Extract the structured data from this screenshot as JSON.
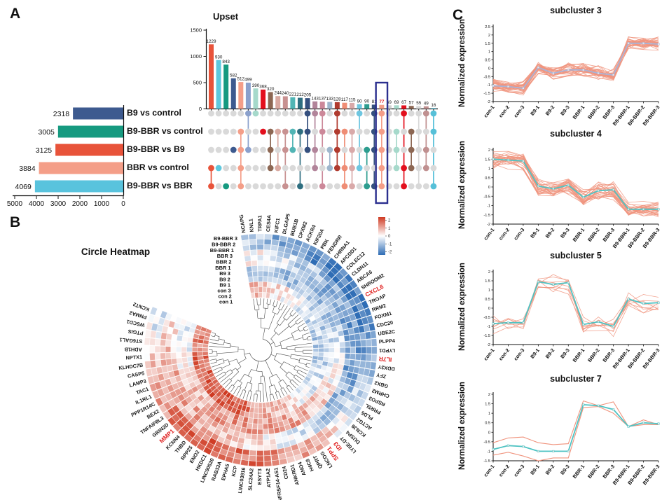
{
  "figure_labels": {
    "a": "A",
    "b": "B",
    "c": "C"
  },
  "chart_data": [
    {
      "type": "bar",
      "id": "upset",
      "title": "Upset",
      "yticks": [
        0,
        500,
        1000,
        1500
      ],
      "ylim": [
        0,
        1500
      ],
      "values": [
        1229,
        930,
        843,
        582,
        512,
        499,
        390,
        368,
        320,
        244,
        240,
        221,
        212,
        205,
        143,
        137,
        133,
        128,
        117,
        115,
        90,
        90,
        81,
        77,
        69,
        69,
        67,
        57,
        55,
        49,
        16
      ],
      "colors": [
        "#e8533a",
        "#5ec8dd",
        "#169a80",
        "#3d5a8f",
        "#f49e88",
        "#8aa0cc",
        "#a6d9cb",
        "#e30f1d",
        "#8d6753",
        "#d9a9a1",
        "#c89191",
        "#51b5b5",
        "#2e6e80",
        "#344f7e",
        "#b2849a",
        "#cc8899",
        "#9fb6cc",
        "#b03a2e",
        "#ef8d75",
        "#d9a9a9",
        "#6ec6e0",
        "#2d9d8f",
        "#35507f",
        "#f49e88",
        "#cfcfcf",
        "#a6d9cb",
        "#e30f1d",
        "#8d6753",
        "#d8d8d8",
        "#c09090",
        "#56c0d8"
      ],
      "matrix_rows": [
        [
          3,
          4
        ],
        [
          3
        ],
        [
          4
        ],
        [
          2
        ],
        [
          1,
          2,
          3,
          4
        ],
        [
          0,
          2
        ],
        [
          0
        ],
        [
          1
        ],
        [
          1,
          2,
          3
        ],
        [
          1,
          3
        ],
        [
          1,
          2,
          4
        ],
        [
          1,
          2
        ],
        [
          1,
          4
        ],
        [
          0,
          1,
          2
        ],
        [
          0,
          2,
          3
        ],
        [
          0,
          1,
          4
        ],
        [
          2,
          3
        ],
        [
          0,
          1,
          2,
          3
        ],
        [
          1,
          3,
          4
        ],
        [
          1,
          2,
          3,
          4
        ],
        [
          0,
          3
        ],
        [
          2,
          4
        ],
        [
          0,
          1,
          2,
          4
        ],
        [
          0,
          1,
          2,
          3,
          4
        ],
        [
          0,
          2
        ],
        [
          1,
          2,
          3
        ],
        [
          0,
          3,
          4
        ],
        [
          1,
          2,
          3
        ],
        [
          0,
          2,
          4
        ],
        [
          0,
          2,
          3
        ],
        [
          0,
          1,
          4
        ]
      ],
      "highlight": {
        "index": 23,
        "value": 77,
        "box_color": "#2b2f8f",
        "value_color": "#e0201f"
      },
      "inactive_dot": "#d9d9d9",
      "sets": {
        "labels": [
          "B9 vs control",
          "B9-BBR vs control",
          "B9-BBR vs B9",
          "BBR vs control",
          "B9-BBR vs BBR"
        ],
        "values": [
          2318,
          3005,
          3125,
          3884,
          4069
        ],
        "colors": [
          "#3d5a8f",
          "#169a80",
          "#e8533a",
          "#f49e88",
          "#59c3dd"
        ],
        "xticks": [
          5000,
          4000,
          3000,
          2000,
          1000,
          0
        ]
      }
    },
    {
      "type": "heatmap",
      "id": "circle-heatmap",
      "title": "Circle Heatmap",
      "rings": [
        "B9-BBR 3",
        "B9-BBR 2",
        "B9-BBR 1",
        "BBR 3",
        "BBR 2",
        "BBR 1",
        "B9 3",
        "B9 2",
        "B9 1",
        "con 3",
        "con 2",
        "con 1"
      ],
      "genes": [
        "NCAPG",
        "KNL1",
        "TRPA1",
        "CES4A",
        "KIFC1",
        "DLGAP5",
        "BUB1B",
        "CPXM2",
        "ACKR4",
        "KIF20A",
        "PBK",
        "FENDRR",
        "CHRNA1",
        "APCDD1",
        "COLEC12",
        "CLDN11",
        "ABCA6",
        "SHROOM2",
        "CXCL6",
        "TROAP",
        "RRM2",
        "FOXM1",
        "CDC20",
        "UBE2C",
        "PLPP4",
        "LYPD1",
        "IL7R",
        "DDX3Y",
        "ZFY",
        "GBX2",
        "CHRM2",
        "RSPO3",
        "PRR5L",
        "PLD5",
        "ACTG2",
        "KCNJ8",
        "DUSP4",
        "LY6E-DT",
        "ID3",
        "SPP1",
        "LNCOG",
        "QPRT",
        "H4C8",
        "ANO4",
        "ANKRD1",
        "CD24",
        "NFRSF14-AS1",
        "ATP1A2",
        "ESYT3",
        "SLC24A2",
        "LINC03916",
        "KCP",
        "EPHA5",
        "RAB33A",
        "LINC00520",
        "HKDC1",
        "ENO2",
        "RPP25",
        "THBD",
        "KCNN4",
        "MMP1",
        "GRIN2D",
        "TNFAIP8L3",
        "BEX2",
        "PPP1R14C",
        "IL1RL1",
        "TAC1",
        "LAMP3",
        "CASP5",
        "KLHDC7B",
        "NPTX1",
        "ADH1B",
        "ST6GAL1",
        "PTGIS",
        "WSCD1",
        "PNMA2",
        "KCNT2"
      ],
      "highlighted_genes": [
        "CXCL6",
        "IL7R",
        "ID3",
        "SPP1",
        "MMP1"
      ],
      "colorbar_ticks": [
        "2",
        "1",
        "0",
        "-1",
        "-2"
      ],
      "palette": {
        "pos": "#cf3a22",
        "zero": "#ffffff",
        "neg": "#2f6db5",
        "highlight": "#e0201f"
      }
    },
    {
      "type": "line",
      "id": "subcluster-3",
      "title": "subcluster 3",
      "ylabel": "Normalized expression",
      "x": [
        "con-1",
        "con-2",
        "con-3",
        "B9-1",
        "B9-2",
        "B9-3",
        "BBR-1",
        "BBR-2",
        "BBR-3",
        "B9-BBR-1",
        "B9-BBR-2",
        "B9-BBR-3"
      ],
      "ylim": [
        -2,
        2.5
      ],
      "yticks": [
        "2.5",
        "2",
        "1.5",
        "1",
        "0.5",
        "0",
        "-0.5",
        "-1",
        "-1.5",
        "-2"
      ],
      "mean": [
        -1.05,
        -1.1,
        -1.2,
        0.05,
        -0.3,
        -0.1,
        -0.1,
        -0.3,
        -0.4,
        1.5,
        1.5,
        1.45
      ],
      "mean_color": "#a9b4d8",
      "members": {
        "count": 34,
        "color": "#f0947e",
        "spread": 0.3
      }
    },
    {
      "type": "line",
      "id": "subcluster-4",
      "title": "subcluster 4",
      "ylabel": "Normalized expression",
      "x": [
        "con-1",
        "con-2",
        "con-3",
        "B9-1",
        "B9-2",
        "B9-3",
        "BBR-1",
        "BBR-2",
        "BBR-3",
        "B9-BBR-1",
        "B9-BBR-2",
        "B9-BBR-3"
      ],
      "ylim": [
        -2,
        2
      ],
      "yticks": [
        "2",
        "1.5",
        "1",
        "0.5",
        "0",
        "-0.5",
        "-1",
        "-1.5",
        "-2"
      ],
      "mean": [
        1.5,
        1.45,
        1.4,
        0.05,
        -0.1,
        0.1,
        -0.55,
        -0.2,
        -0.15,
        -1.2,
        -1.2,
        -1.2
      ],
      "mean_color": "#4fc3c3",
      "members": {
        "count": 28,
        "color": "#f0947e",
        "spread": 0.35
      }
    },
    {
      "type": "line",
      "id": "subcluster-5",
      "title": "subcluster 5",
      "ylabel": "Normalized expression",
      "x": [
        "con-1",
        "con-2",
        "con-3",
        "B9-1",
        "B9-2",
        "B9-3",
        "BBR-1",
        "BBR-2",
        "BBR-3",
        "B9-BBR-1",
        "B9-BBR-2",
        "B9-BBR-3"
      ],
      "ylim": [
        -2,
        2
      ],
      "yticks": [
        "2",
        "1.5",
        "1",
        "0.5",
        "0",
        "-0.5",
        "-1",
        "-1.5",
        "-2"
      ],
      "mean": [
        -0.85,
        -0.8,
        -0.8,
        1.45,
        1.3,
        1.4,
        -0.9,
        -0.75,
        -1.0,
        0.5,
        0.25,
        0.3
      ],
      "mean_color": "#4fc3c3",
      "members": {
        "count": 9,
        "color": "#f0947e",
        "spread": 0.42
      }
    },
    {
      "type": "line",
      "id": "subcluster-7",
      "title": "subcluster 7",
      "ylabel": "Normalized expression",
      "x": [
        "con-1",
        "con-2",
        "con-3",
        "B9-1",
        "B9-2",
        "B9-3",
        "BBR-1",
        "BBR-2",
        "BBR-3",
        "B9-BBR-1",
        "B9-BBR-2",
        "B9-BBR-3"
      ],
      "ylim": [
        -1.5,
        2
      ],
      "yticks": [
        "2",
        "1.5",
        "1",
        "0.5",
        "0",
        "-0.5",
        "-1",
        "-1.5"
      ],
      "mean": [
        -0.9,
        -0.7,
        -0.75,
        -1.0,
        -1.0,
        -1.0,
        1.45,
        1.4,
        1.2,
        0.3,
        0.5,
        0.45
      ],
      "mean_color": "#4fc3c3",
      "members": {
        "count": 2,
        "color": "#f0947e",
        "spread": 0,
        "lines": [
          [
            -0.55,
            -0.3,
            -0.25,
            -0.55,
            -0.65,
            -0.6,
            1.65,
            1.4,
            1.6,
            0.3,
            0.65,
            0.4
          ],
          [
            -1.2,
            -1.05,
            -1.25,
            -1.5,
            -1.35,
            -1.35,
            1.3,
            1.35,
            1.0,
            0.3,
            0.4,
            0.4
          ]
        ]
      }
    }
  ]
}
